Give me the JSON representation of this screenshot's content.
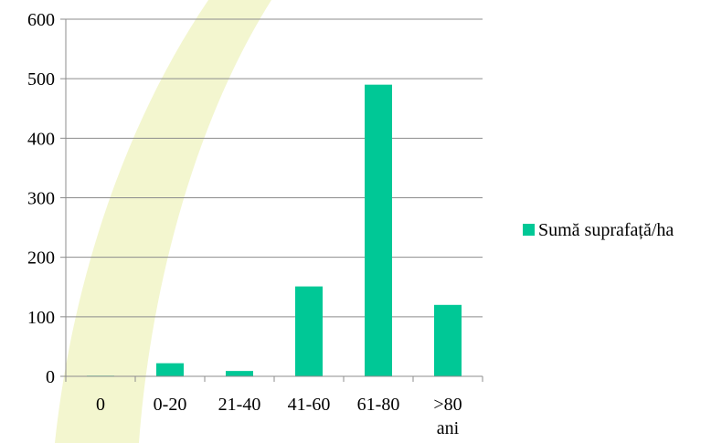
{
  "chart_data": {
    "type": "bar",
    "categories": [
      "0",
      "0-20",
      "21-40",
      "41-60",
      "61-80",
      ">80 ani"
    ],
    "series": [
      {
        "name": "Sumă suprafață/ha",
        "values": [
          1,
          22,
          9,
          151,
          490,
          120
        ],
        "color": "#00c896"
      }
    ],
    "title": "",
    "xlabel": "",
    "ylabel": "",
    "ylim": [
      0,
      600
    ],
    "yticks": [
      0,
      100,
      200,
      300,
      400,
      500,
      600
    ],
    "grid": true,
    "legend_position": "right",
    "background_decoration_color": "#f3f6cf"
  }
}
